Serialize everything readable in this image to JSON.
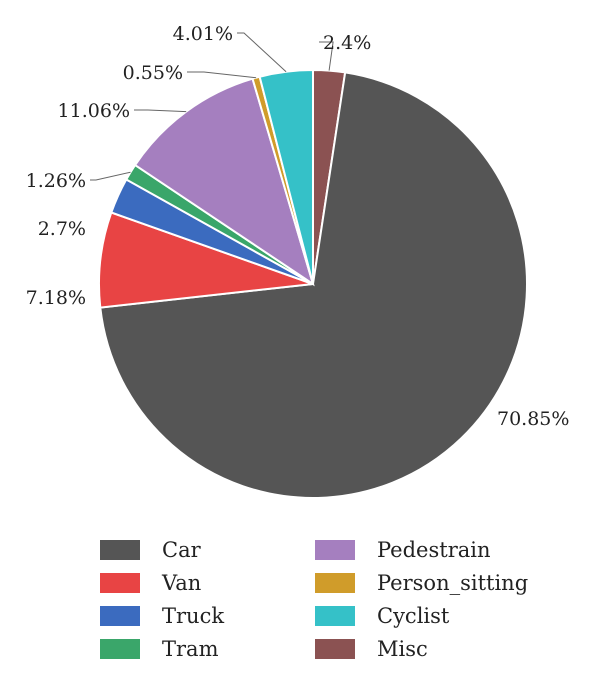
{
  "chart_data": {
    "type": "pie",
    "title": "",
    "slices": [
      {
        "name": "Misc",
        "value": 2.4,
        "label": "2.4%",
        "color": "#8b5252"
      },
      {
        "name": "Car",
        "value": 70.85,
        "label": "70.85%",
        "color": "#555555"
      },
      {
        "name": "Van",
        "value": 7.18,
        "label": "7.18%",
        "color": "#e84444"
      },
      {
        "name": "Truck",
        "value": 2.7,
        "label": "2.7%",
        "color": "#3b6bbf"
      },
      {
        "name": "Tram",
        "value": 1.26,
        "label": "1.26%",
        "color": "#3aa66a"
      },
      {
        "name": "Pedestrain",
        "value": 11.06,
        "label": "11.06%",
        "color": "#a57fbf"
      },
      {
        "name": "Person_sitting",
        "value": 0.55,
        "label": "0.55%",
        "color": "#d09c2a"
      },
      {
        "name": "Cyclist",
        "value": 4.01,
        "label": "4.01%",
        "color": "#35c1c8"
      }
    ],
    "legend": {
      "position": "bottom",
      "columns": [
        [
          "Car",
          "Van",
          "Truck",
          "Tram"
        ],
        [
          "Pedestrain",
          "Person_sitting",
          "Cyclist",
          "Misc"
        ]
      ]
    }
  }
}
